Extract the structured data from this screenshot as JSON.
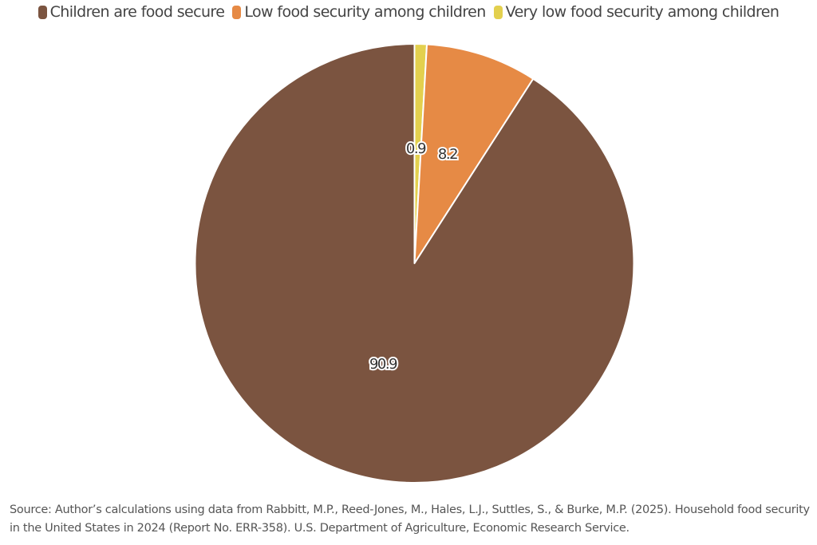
{
  "chart_data": {
    "type": "pie",
    "title": "",
    "categories": [
      "Very low food security among children",
      "Low food security among children",
      "Children are food secure"
    ],
    "values": [
      0.9,
      8.2,
      90.9
    ],
    "colors": [
      "#E3D04E",
      "#E68A45",
      "#7B5440"
    ],
    "data_labels": [
      "0.9",
      "8.2",
      "90.9"
    ],
    "start_angle_deg": 0,
    "direction": "clockwise",
    "legend": {
      "placement": "top",
      "entries": [
        {
          "label": "Children are food secure",
          "color": "#7B5440"
        },
        {
          "label": "Low food security among children",
          "color": "#E68A45"
        },
        {
          "label": "Very low food security among children",
          "color": "#E3D04E"
        }
      ]
    }
  },
  "source": {
    "line1": "Source: Author’s calculations using data from Rabbitt, M.P., Reed-Jones, M., Hales, L.J., Suttles, S., & Burke, M.P. (2025). Household food security",
    "line2": "in the United States in 2024 (Report No. ERR-358). U.S. Department of Agriculture, Economic Research Service."
  }
}
